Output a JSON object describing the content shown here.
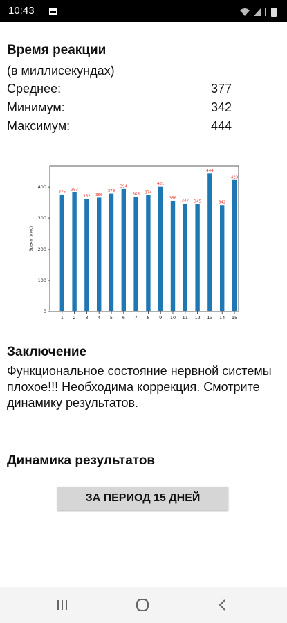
{
  "status_bar": {
    "time": "10:43"
  },
  "reaction": {
    "title": "Время реакции",
    "subtitle": "(в миллисекундах)",
    "stats": [
      {
        "label": "Среднее:",
        "value": 377
      },
      {
        "label": "Минимум:",
        "value": 342
      },
      {
        "label": "Максимум:",
        "value": 444
      }
    ]
  },
  "chart_data": {
    "type": "bar",
    "y_label": "Время (в мс)",
    "categories": [
      "1",
      "2",
      "3",
      "4",
      "5",
      "6",
      "7",
      "8",
      "9",
      "10",
      "11",
      "12",
      "13",
      "14",
      "15"
    ],
    "values": [
      376,
      383,
      362,
      366,
      379,
      394,
      368,
      374,
      401,
      356,
      347,
      345,
      444,
      342,
      423
    ],
    "color": "#1f77b4",
    "value_label_color": "#e8312a",
    "ylim": [
      0,
      467
    ],
    "yticks": [
      0,
      100,
      200,
      300,
      400
    ]
  },
  "conclusion": {
    "title": "Заключение",
    "text": "Функциональное состояние нервной системы плохое!!! Необходима коррекция. Смотрите динамику результатов."
  },
  "dynamics": {
    "title": "Динамика результатов",
    "button": "ЗА ПЕРИОД 15 ДНЕЙ"
  }
}
